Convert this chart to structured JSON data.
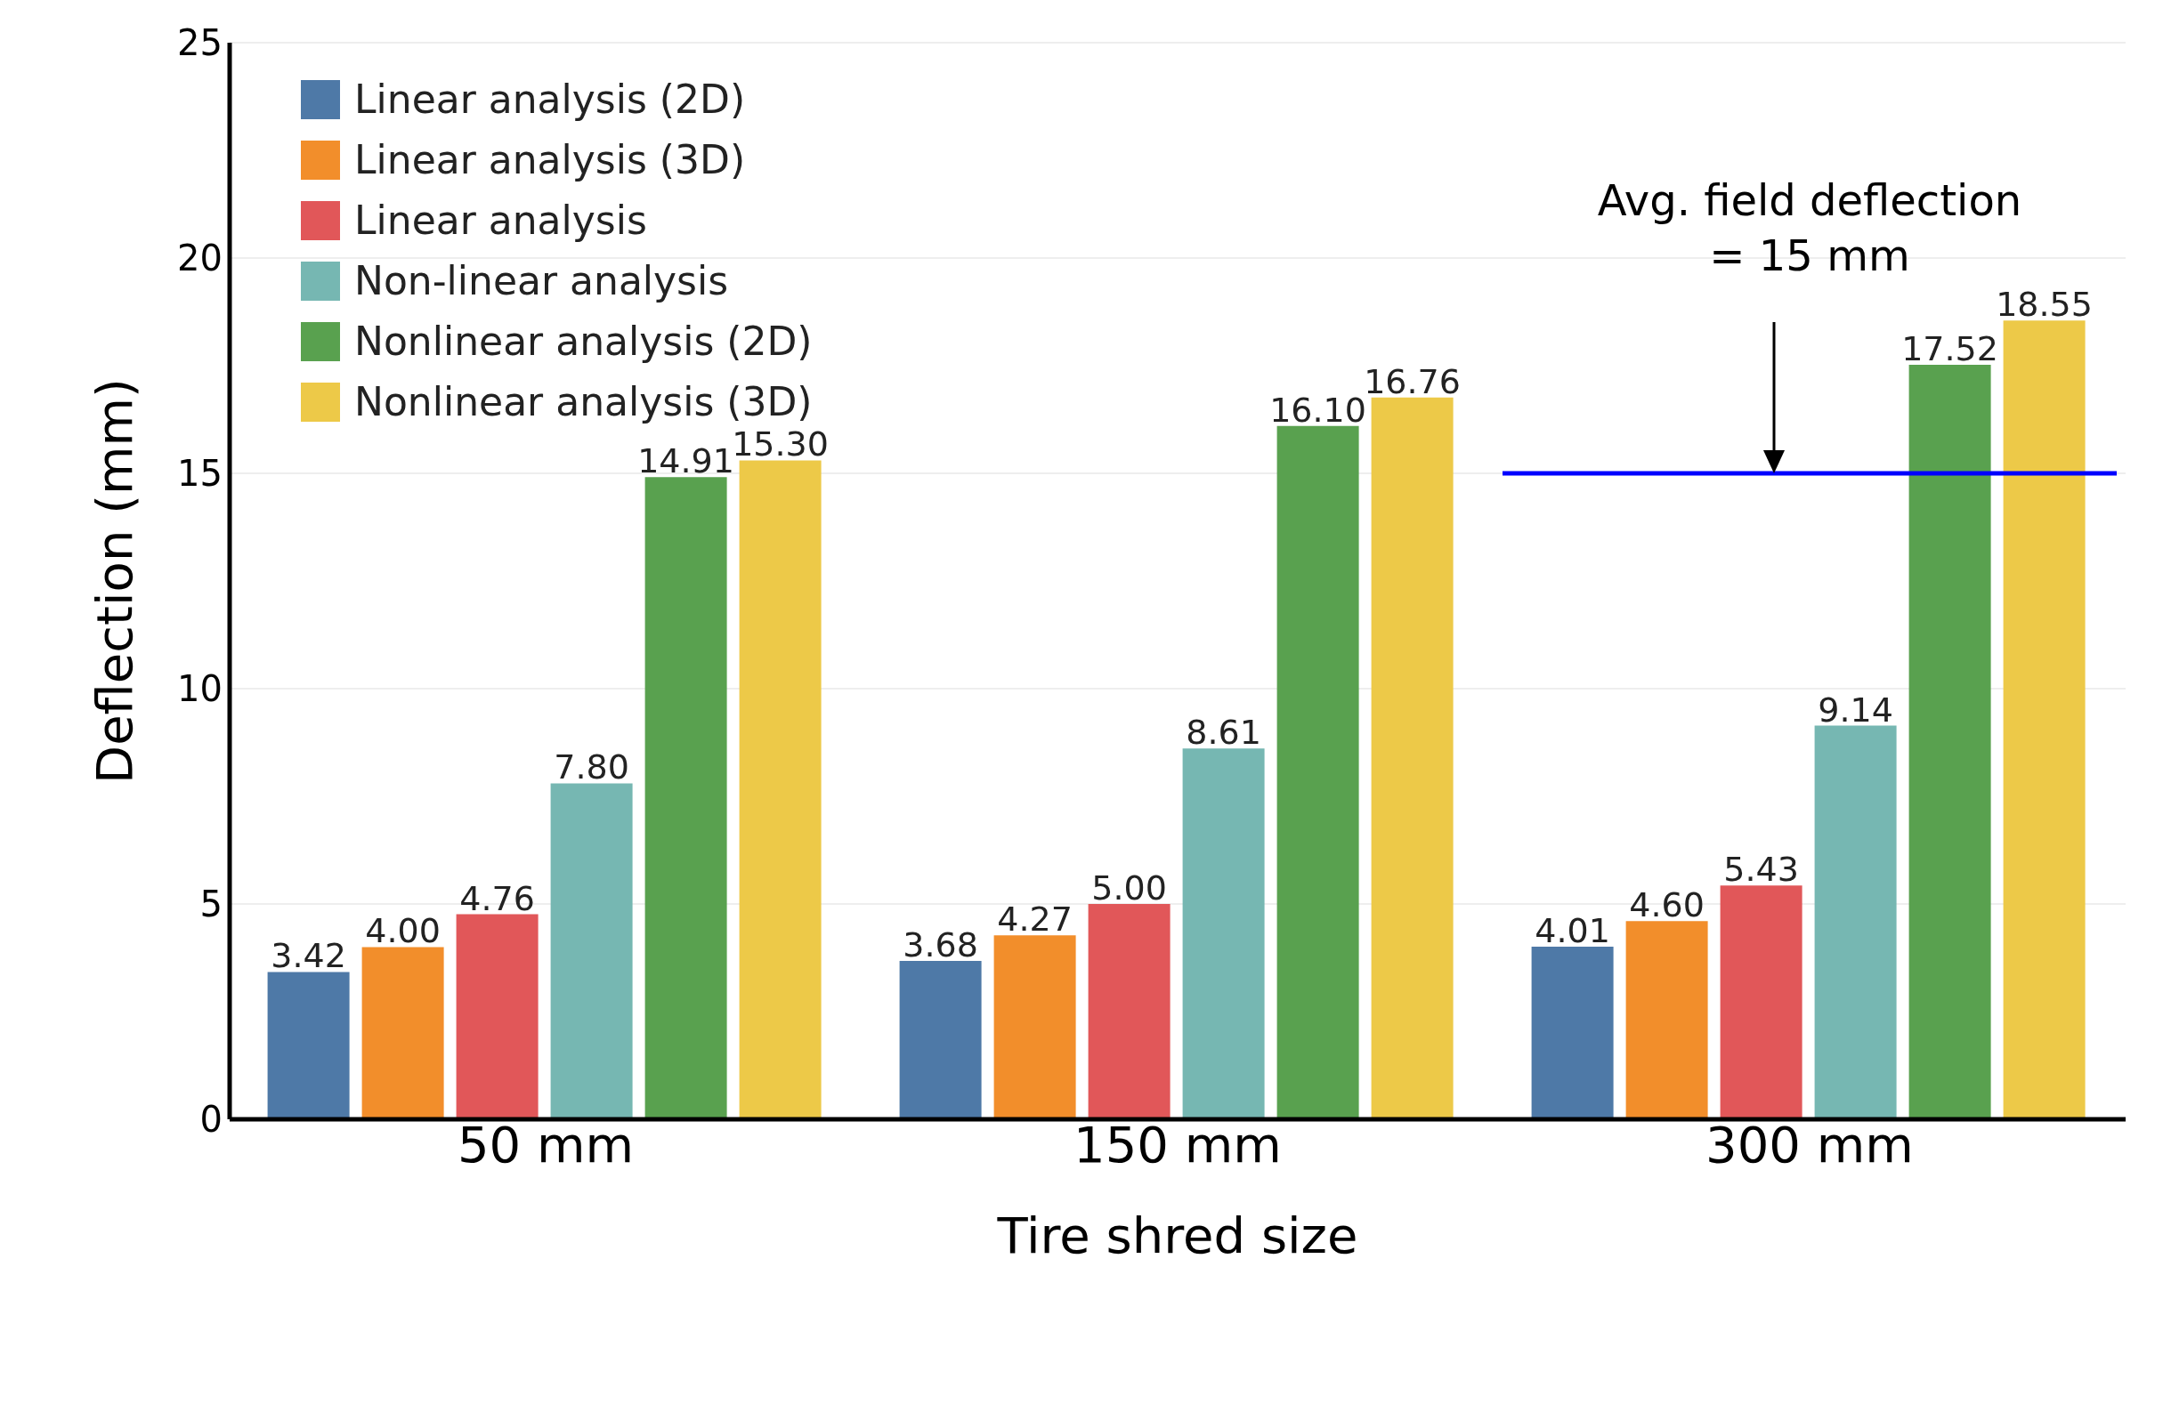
{
  "chart_data": {
    "type": "bar",
    "xlabel": "Tire shred size",
    "ylabel": "Deflection (mm)",
    "categories": [
      "50 mm",
      "150 mm",
      "300 mm"
    ],
    "series": [
      {
        "name": "Linear analysis (2D)",
        "color": "#4e79a7",
        "values": [
          3.42,
          3.68,
          4.01
        ],
        "value_labels": [
          "3.42",
          "3.68",
          "4.01"
        ]
      },
      {
        "name": "Linear analysis (3D)",
        "color": "#f28e2b",
        "values": [
          4.0,
          4.27,
          4.6
        ],
        "value_labels": [
          "4.00",
          "4.27",
          "4.60"
        ]
      },
      {
        "name": "Linear analysis",
        "color": "#e15759",
        "values": [
          4.76,
          5.0,
          5.43
        ],
        "value_labels": [
          "4.76",
          "5.00",
          "5.43"
        ]
      },
      {
        "name": "Non-linear analysis",
        "color": "#76b7b2",
        "values": [
          7.8,
          8.61,
          9.14
        ],
        "value_labels": [
          "7.80",
          "8.61",
          "9.14"
        ]
      },
      {
        "name": "Nonlinear analysis (2D)",
        "color": "#59a14f",
        "values": [
          14.91,
          16.1,
          17.52
        ],
        "value_labels": [
          "14.91",
          "16.10",
          "17.52"
        ]
      },
      {
        "name": "Nonlinear analysis (3D)",
        "color": "#edc948",
        "values": [
          15.3,
          16.76,
          18.55
        ],
        "value_labels": [
          "15.30",
          "16.76",
          "18.55"
        ]
      }
    ],
    "ylim": [
      0,
      25
    ],
    "yticks": [
      0,
      5,
      10,
      15,
      20,
      25
    ],
    "grid": "y",
    "legend": "top left",
    "ref_lines": [
      {
        "axis": "y",
        "value": 15,
        "color": "#0000ff"
      }
    ],
    "annotations": [
      "Avg. field deflection\n= 15 mm"
    ]
  }
}
